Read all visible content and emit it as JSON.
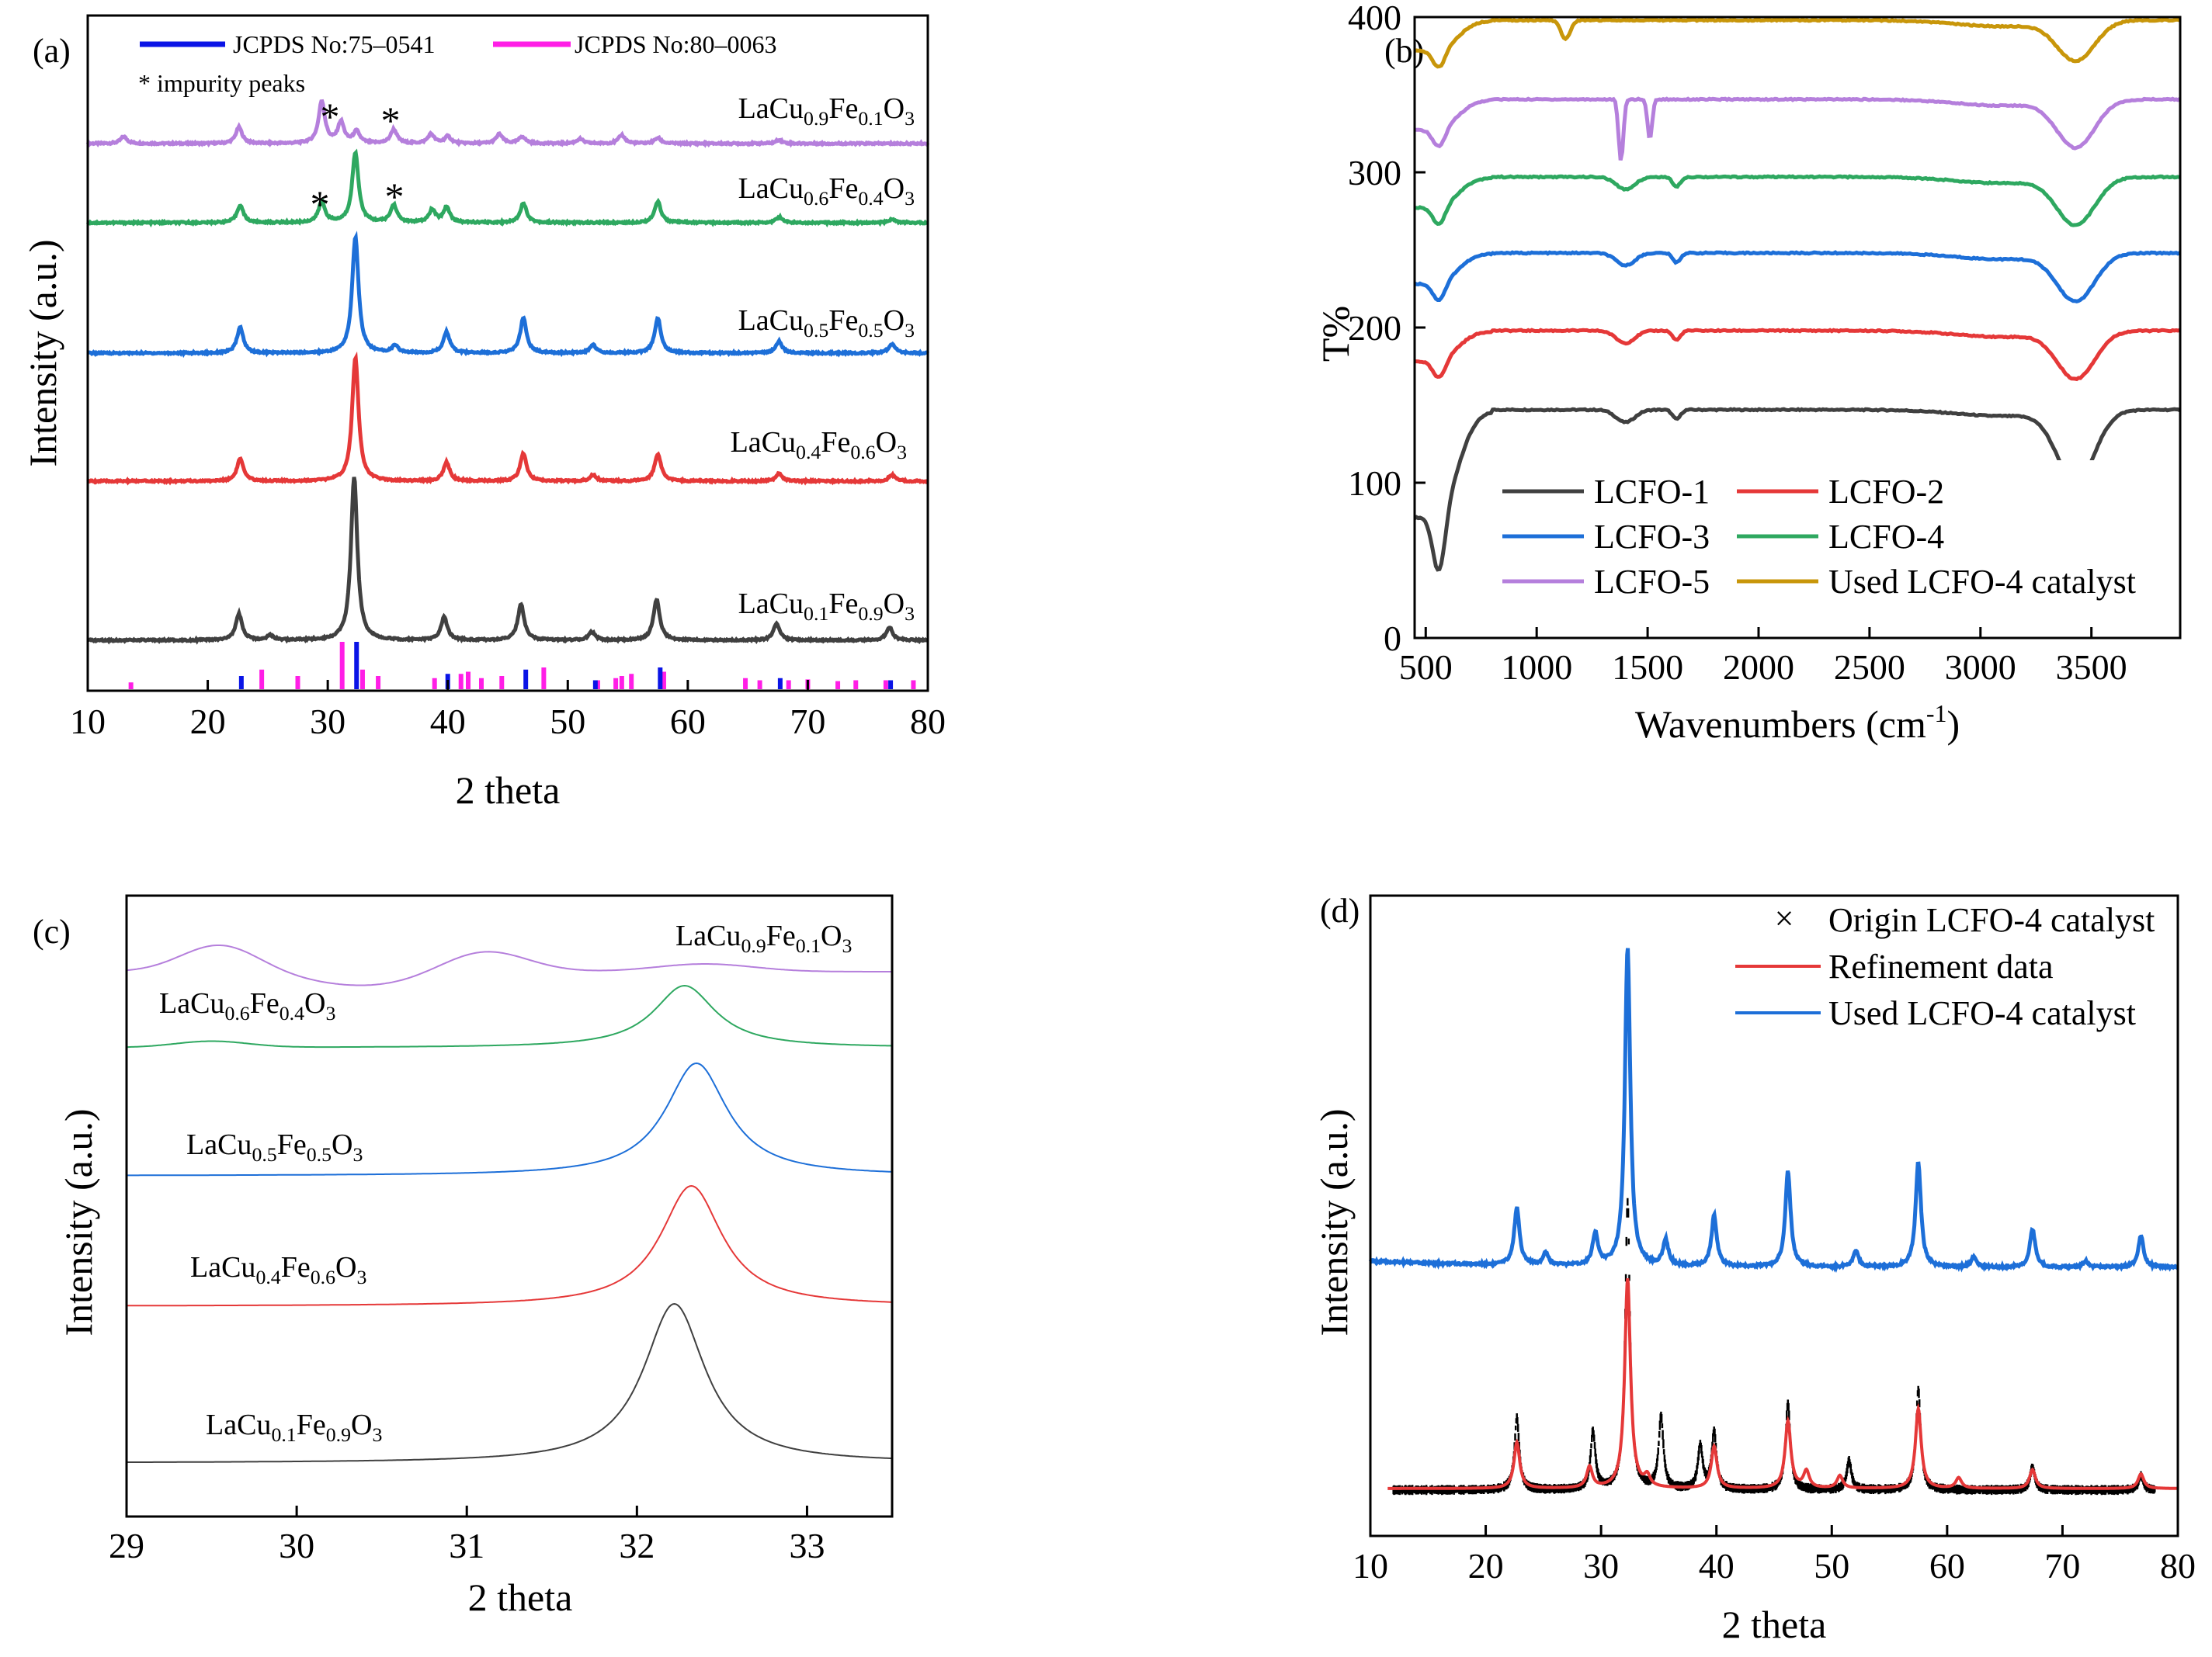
{
  "chart_data": [
    {
      "panel": "(a)",
      "type": "line",
      "xlabel": "2 theta",
      "ylabel": "Intensity (a.u.)",
      "xlim": [
        10,
        80
      ],
      "xticks": [
        10,
        20,
        30,
        40,
        50,
        60,
        70,
        80
      ],
      "ref_legend": [
        {
          "label": "JCPDS No:75–0541",
          "color": "#0a14e6"
        },
        {
          "label": "JCPDS No:80–0063",
          "color": "#ff1ee6"
        }
      ],
      "impurity_note": "* impurity peaks",
      "impurity_marker": "*",
      "series": [
        {
          "name": "LaCu0.9Fe0.1O3",
          "base": "LaCu",
          "x1": "0.9",
          "mid": "Fe",
          "x2": "0.1",
          "tail": "O",
          "x3": "3",
          "color": "#b57fdc",
          "peaks": [
            [
              13.0,
              0.15
            ],
            [
              22.6,
              0.35
            ],
            [
              29.5,
              0.9
            ],
            [
              31.1,
              0.45
            ],
            [
              32.4,
              0.25
            ],
            [
              35.5,
              0.3
            ],
            [
              38.6,
              0.2
            ],
            [
              40.0,
              0.15
            ],
            [
              44.3,
              0.2
            ],
            [
              46.2,
              0.15
            ],
            [
              51.0,
              0.1
            ],
            [
              54.5,
              0.18
            ],
            [
              57.5,
              0.12
            ],
            [
              67.6,
              0.08
            ]
          ]
        },
        {
          "name": "LaCu0.6Fe0.4O3",
          "base": "LaCu",
          "x1": "0.6",
          "mid": "Fe",
          "x2": "0.4",
          "tail": "O",
          "x3": "3",
          "color": "#2ea860",
          "peaks": [
            [
              22.7,
              0.25
            ],
            [
              29.5,
              0.3
            ],
            [
              32.3,
              1.0
            ],
            [
              35.5,
              0.25
            ],
            [
              38.7,
              0.18
            ],
            [
              39.9,
              0.22
            ],
            [
              46.3,
              0.28
            ],
            [
              57.5,
              0.3
            ],
            [
              67.6,
              0.08
            ],
            [
              77.0,
              0.05
            ]
          ]
        },
        {
          "name": "LaCu0.5Fe0.5O3",
          "base": "LaCu",
          "x1": "0.5",
          "mid": "Fe",
          "x2": "0.5",
          "tail": "O",
          "x3": "3",
          "color": "#1d6fd8",
          "peaks": [
            [
              22.7,
              0.22
            ],
            [
              32.3,
              1.0
            ],
            [
              35.6,
              0.06
            ],
            [
              39.9,
              0.18
            ],
            [
              46.3,
              0.3
            ],
            [
              52.1,
              0.07
            ],
            [
              57.5,
              0.3
            ],
            [
              67.6,
              0.1
            ],
            [
              77.0,
              0.08
            ]
          ]
        },
        {
          "name": "LaCu0.4Fe0.6O3",
          "base": "LaCu",
          "x1": "0.4",
          "mid": "Fe",
          "x2": "0.6",
          "tail": "O",
          "x3": "3",
          "color": "#e53838",
          "peaks": [
            [
              22.7,
              0.18
            ],
            [
              32.3,
              1.0
            ],
            [
              39.9,
              0.15
            ],
            [
              46.3,
              0.22
            ],
            [
              52.1,
              0.05
            ],
            [
              57.5,
              0.22
            ],
            [
              67.6,
              0.06
            ],
            [
              77.0,
              0.05
            ]
          ]
        },
        {
          "name": "LaCu0.1Fe0.9O3",
          "base": "LaCu",
          "x1": "0.1",
          "mid": "Fe",
          "x2": "0.9",
          "tail": "O",
          "x3": "3",
          "color": "#404040",
          "peaks": [
            [
              22.6,
              0.16
            ],
            [
              25.2,
              0.03
            ],
            [
              32.2,
              1.0
            ],
            [
              39.7,
              0.14
            ],
            [
              46.1,
              0.22
            ],
            [
              52.0,
              0.05
            ],
            [
              57.4,
              0.25
            ],
            [
              67.4,
              0.1
            ],
            [
              76.8,
              0.08
            ]
          ]
        }
      ],
      "ref_sticks": [
        {
          "ref": 1,
          "x": [
            13.6,
            24.5,
            27.5,
            31.2,
            32.9,
            34.2,
            38.9,
            41.1,
            41.7,
            42.8,
            44.5,
            48.0,
            52.5,
            54.0,
            54.5,
            55.3,
            58.0,
            64.8,
            66.0,
            68.4,
            70.0,
            72.5,
            74.0,
            76.5,
            78.8
          ],
          "h": [
            0.05,
            0.35,
            0.2,
            1.0,
            0.35,
            0.2,
            0.15,
            0.25,
            0.3,
            0.15,
            0.2,
            0.4,
            0.1,
            0.15,
            0.2,
            0.25,
            0.3,
            0.15,
            0.1,
            0.1,
            0.12,
            0.08,
            0.1,
            0.1,
            0.1
          ]
        },
        {
          "ref": 0,
          "x": [
            22.8,
            32.4,
            40.0,
            46.5,
            52.3,
            57.7,
            67.7,
            76.9
          ],
          "h": [
            0.2,
            1.0,
            0.25,
            0.35,
            0.1,
            0.4,
            0.15,
            0.1
          ]
        }
      ]
    },
    {
      "panel": "(b)",
      "type": "line",
      "xlabel": "Wavenumbers (cm",
      "xlabel_sup": "-1",
      "xlabel_end": ")",
      "ylabel": "T%",
      "xlim": [
        450,
        3900
      ],
      "ylim": [
        0,
        400
      ],
      "xticks": [
        500,
        1000,
        1500,
        2000,
        2500,
        3000,
        3500
      ],
      "yticks": [
        0,
        100,
        200,
        300,
        400
      ],
      "legend": [
        "LCFO-1",
        "LCFO-2",
        "LCFO-3",
        "LCFO-4",
        "LCFO-5",
        "Used LCFO-4 catalyst"
      ],
      "series": [
        {
          "name": "LCFO-1",
          "color": "#404040",
          "offset": 147
        },
        {
          "name": "LCFO-2",
          "color": "#e53838",
          "offset": 198
        },
        {
          "name": "LCFO-3",
          "color": "#1d6fd8",
          "offset": 248
        },
        {
          "name": "LCFO-4",
          "color": "#2ea860",
          "offset": 297
        },
        {
          "name": "LCFO-5",
          "color": "#b57fdc",
          "offset": 347
        },
        {
          "name": "Used LCFO-4 catalyst",
          "color": "#c8960a",
          "offset": 398
        }
      ]
    },
    {
      "panel": "(c)",
      "type": "line",
      "xlabel": "2 theta",
      "ylabel": "Intensity (a.u.)",
      "xlim": [
        29,
        33.5
      ],
      "xticks": [
        29,
        30,
        31,
        32,
        33
      ],
      "series": [
        {
          "name": "LaCu0.9Fe0.1O3",
          "base": "LaCu",
          "x1": "0.9",
          "mid": "Fe",
          "x2": "0.1",
          "tail": "O",
          "x3": "3",
          "color": "#b57fdc"
        },
        {
          "name": "LaCu0.6Fe0.4O3",
          "base": "LaCu",
          "x1": "0.6",
          "mid": "Fe",
          "x2": "0.4",
          "tail": "O",
          "x3": "3",
          "color": "#2ea860"
        },
        {
          "name": "LaCu0.5Fe0.5O3",
          "base": "LaCu",
          "x1": "0.5",
          "mid": "Fe",
          "x2": "0.5",
          "tail": "O",
          "x3": "3",
          "color": "#1d6fd8"
        },
        {
          "name": "LaCu0.4Fe0.6O3",
          "base": "LaCu",
          "x1": "0.4",
          "mid": "Fe",
          "x2": "0.6",
          "tail": "O",
          "x3": "3",
          "color": "#e53838"
        },
        {
          "name": "LaCu0.1Fe0.9O3",
          "base": "LaCu",
          "x1": "0.1",
          "mid": "Fe",
          "x2": "0.9",
          "tail": "O",
          "x3": "3",
          "color": "#404040"
        }
      ],
      "peak_positions": [
        32.35,
        32.28,
        32.35,
        32.32,
        32.22
      ]
    },
    {
      "panel": "(d)",
      "type": "line",
      "xlabel": "2 theta",
      "ylabel": "Intensity (a.u.)",
      "xlim": [
        10,
        80
      ],
      "xticks": [
        10,
        20,
        30,
        40,
        50,
        60,
        70,
        80
      ],
      "legend": [
        {
          "label": "Origin LCFO-4 catalyst",
          "marker": "×",
          "color": "#000000"
        },
        {
          "label": "Refinement data",
          "color": "#e53838"
        },
        {
          "label": "Used LCFO-4 catalyst",
          "color": "#1d6fd8"
        }
      ],
      "peaks": [
        [
          22.7,
          0.18
        ],
        [
          25.2,
          0.04
        ],
        [
          29.5,
          0.1
        ],
        [
          32.3,
          1.0
        ],
        [
          35.6,
          0.08
        ],
        [
          39.8,
          0.16
        ],
        [
          46.2,
          0.3
        ],
        [
          52.1,
          0.05
        ],
        [
          57.5,
          0.33
        ],
        [
          62.3,
          0.03
        ],
        [
          67.4,
          0.12
        ],
        [
          72.0,
          0.02
        ],
        [
          76.8,
          0.1
        ]
      ],
      "origin_peaks": [
        [
          22.7,
          0.25
        ],
        [
          29.3,
          0.2
        ],
        [
          32.3,
          1.0
        ],
        [
          35.2,
          0.25
        ],
        [
          38.6,
          0.15
        ],
        [
          39.8,
          0.2
        ],
        [
          46.2,
          0.3
        ],
        [
          51.5,
          0.1
        ],
        [
          57.5,
          0.35
        ],
        [
          67.4,
          0.08
        ],
        [
          76.8,
          0.05
        ]
      ],
      "refine_peaks": [
        [
          22.7,
          0.22
        ],
        [
          29.0,
          0.1
        ],
        [
          32.3,
          1.0
        ],
        [
          34.0,
          0.05
        ],
        [
          39.8,
          0.2
        ],
        [
          46.2,
          0.32
        ],
        [
          47.8,
          0.08
        ],
        [
          50.7,
          0.06
        ],
        [
          57.5,
          0.38
        ],
        [
          61.0,
          0.05
        ],
        [
          67.4,
          0.09
        ],
        [
          76.8,
          0.07
        ]
      ]
    }
  ]
}
